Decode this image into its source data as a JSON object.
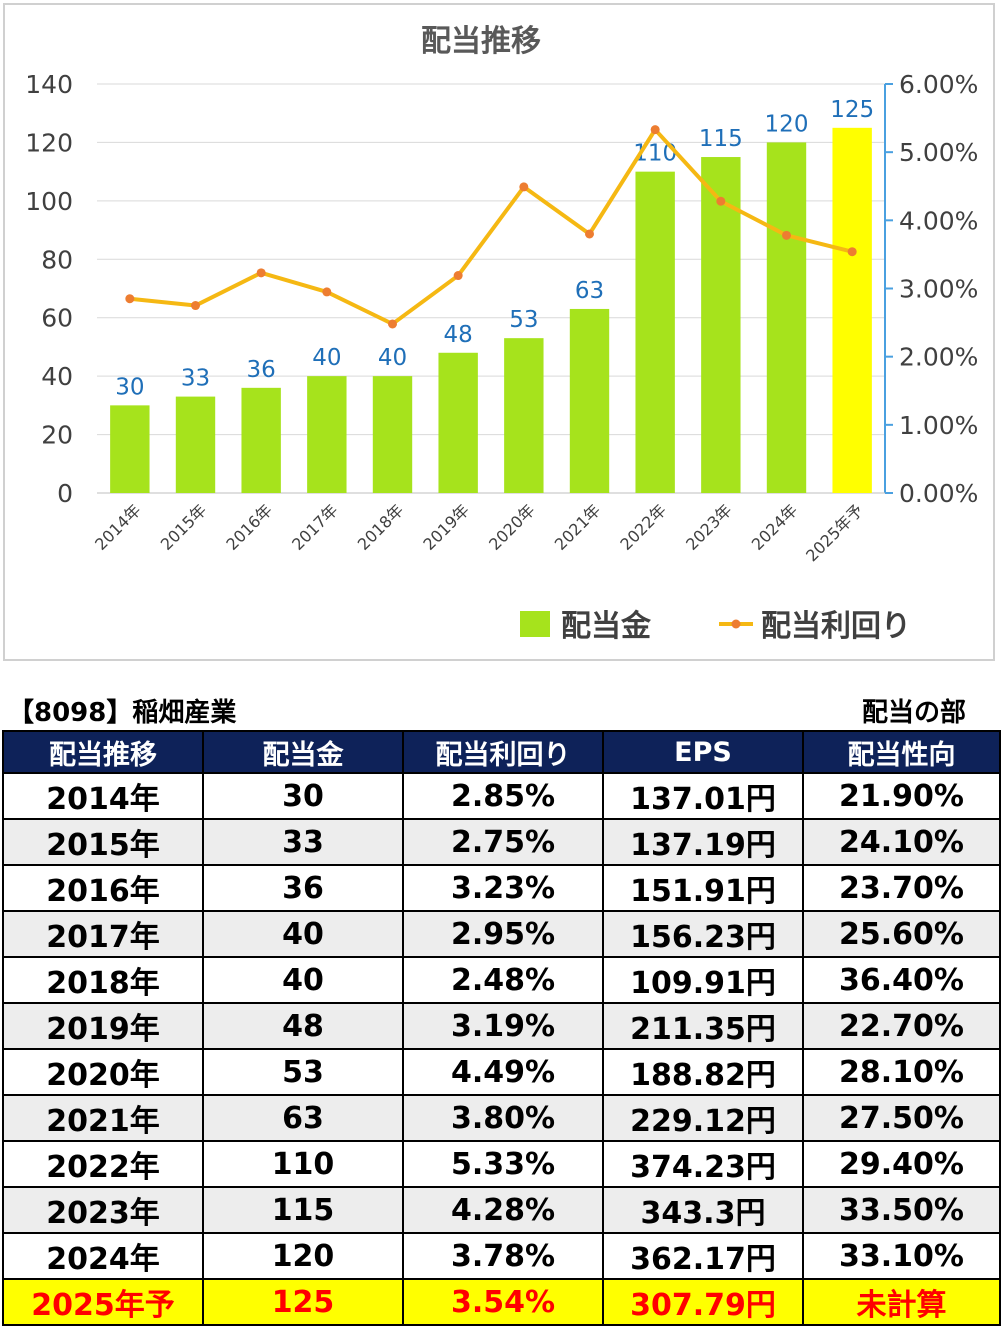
{
  "chart_data": {
    "type": "bar+line",
    "title": "配当推移",
    "categories": [
      "2014年",
      "2015年",
      "2016年",
      "2017年",
      "2018年",
      "2019年",
      "2020年",
      "2021年",
      "2022年",
      "2023年",
      "2024年",
      "2025年予"
    ],
    "series": [
      {
        "name": "配当金",
        "type": "bar",
        "axis": "left",
        "color": "#a6e31c",
        "forecast_color": "#ffff00",
        "values": [
          30,
          33,
          36,
          40,
          40,
          48,
          53,
          63,
          110,
          115,
          120,
          125
        ]
      },
      {
        "name": "配当利回り",
        "type": "line",
        "axis": "right",
        "color": "#f5b813",
        "marker_color": "#ed7d31",
        "values": [
          2.85,
          2.75,
          3.23,
          2.95,
          2.48,
          3.19,
          4.49,
          3.8,
          5.33,
          4.28,
          3.78,
          3.54
        ]
      }
    ],
    "y_left": {
      "min": 0,
      "max": 140,
      "ticks": [
        "0",
        "20",
        "40",
        "60",
        "80",
        "100",
        "120",
        "140"
      ]
    },
    "y_right": {
      "min": 0,
      "max": 6,
      "ticks": [
        "0.00%",
        "1.00%",
        "2.00%",
        "3.00%",
        "4.00%",
        "5.00%",
        "6.00%"
      ]
    },
    "grid": true,
    "legend_position": "bottom-right",
    "data_label_color": "#1f6fb8"
  },
  "header": {
    "company": "【8098】稲畑産業",
    "section": "配当の部"
  },
  "table": {
    "columns": [
      "配当推移",
      "配当金",
      "配当利回り",
      "EPS",
      "配当性向"
    ],
    "rows": [
      [
        "2014年",
        "30",
        "2.85%",
        "137.01円",
        "21.90%"
      ],
      [
        "2015年",
        "33",
        "2.75%",
        "137.19円",
        "24.10%"
      ],
      [
        "2016年",
        "36",
        "3.23%",
        "151.91円",
        "23.70%"
      ],
      [
        "2017年",
        "40",
        "2.95%",
        "156.23円",
        "25.60%"
      ],
      [
        "2018年",
        "40",
        "2.48%",
        "109.91円",
        "36.40%"
      ],
      [
        "2019年",
        "48",
        "3.19%",
        "211.35円",
        "22.70%"
      ],
      [
        "2020年",
        "53",
        "4.49%",
        "188.82円",
        "28.10%"
      ],
      [
        "2021年",
        "63",
        "3.80%",
        "229.12円",
        "27.50%"
      ],
      [
        "2022年",
        "110",
        "5.33%",
        "374.23円",
        "29.40%"
      ],
      [
        "2023年",
        "115",
        "4.28%",
        "343.3円",
        "33.50%"
      ],
      [
        "2024年",
        "120",
        "3.78%",
        "362.17円",
        "33.10%"
      ],
      [
        "2025年予",
        "125",
        "3.54%",
        "307.79円",
        "未計算"
      ]
    ],
    "forecast_row_index": 11,
    "header_color": "#0e2259",
    "forecast_bg": "#ffff00",
    "forecast_text": "#ff0000"
  }
}
